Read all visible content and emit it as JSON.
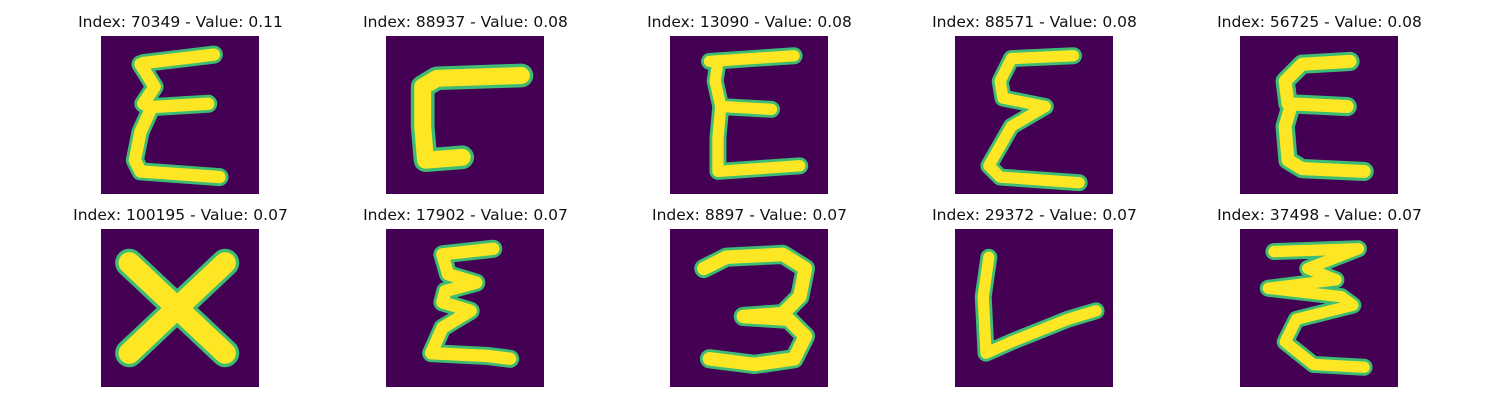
{
  "colors": {
    "background": "#440154",
    "stroke": "#fde725",
    "edge": "#3fbc73",
    "edge_dark": "#21918c"
  },
  "panels": [
    {
      "title": "Index: 70349 - Value: 0.11",
      "glyph": "E-shaped handwritten character"
    },
    {
      "title": "Index: 88937 - Value: 0.08",
      "glyph": "reversed-L shaped character"
    },
    {
      "title": "Index: 13090 - Value: 0.08",
      "glyph": "E-shaped handwritten character"
    },
    {
      "title": "Index: 88571 - Value: 0.08",
      "glyph": "E-shaped handwritten character"
    },
    {
      "title": "Index: 56725 - Value: 0.08",
      "glyph": "E-shaped handwritten character"
    },
    {
      "title": "Index: 100195 - Value: 0.07",
      "glyph": "X-shaped character"
    },
    {
      "title": "Index: 17902 - Value: 0.07",
      "glyph": "E-shaped handwritten character"
    },
    {
      "title": "Index: 8897 - Value: 0.07",
      "glyph": "3-shaped character"
    },
    {
      "title": "Index: 29372 - Value: 0.07",
      "glyph": "L-shaped character"
    },
    {
      "title": "Index: 37498 - Value: 0.07",
      "glyph": "zigzag E-shaped character"
    }
  ]
}
